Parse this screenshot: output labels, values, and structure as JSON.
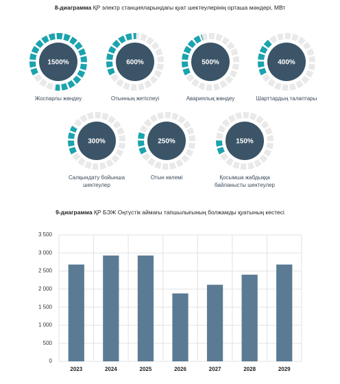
{
  "chart_data": [
    {
      "type": "gauge",
      "figure_label": "8-диаграмма",
      "title": "ҚР электр станцияларындағы қуат шектеулерінің орташа мәндері, МВт",
      "categories": [
        "Жоспарлы жөндеу",
        "Отынның жетіспеуі",
        "Авариялық жөндеу",
        "Шарттардың талаптары",
        "Салқындату бойынша шектеулер",
        "Отын көлемі",
        "Қосымша жабдыққа байланысты шектеулер"
      ],
      "values": [
        1500,
        600,
        500,
        400,
        300,
        250,
        150
      ],
      "value_labels": [
        "1500%",
        "600%",
        "500%",
        "400%",
        "300%",
        "250%",
        "150%"
      ],
      "color": "#1ba3ae"
    },
    {
      "type": "bar",
      "figure_label": "9-диаграмма",
      "title": "ҚР БЭЖ Оңтүстік аймағы тапшылығының болжамды қуатының кестесі",
      "categories": [
        "2023",
        "2024",
        "2025",
        "2026",
        "2027",
        "2028",
        "2029"
      ],
      "values": [
        2680,
        2930,
        2930,
        1880,
        2120,
        2400,
        2680
      ],
      "color": "#5b7b94",
      "ylim": [
        0,
        3500
      ],
      "yticks": [
        0,
        500,
        {
          "value": 1000,
          "label": "1 000"
        },
        {
          "value": 1500,
          "label": "1 500"
        },
        {
          "value": 2000,
          "label": "2 000"
        },
        {
          "value": 2500,
          "label": "2 500"
        },
        {
          "value": 3000,
          "label": "3 000"
        },
        {
          "value": 3500,
          "label": "3 500"
        }
      ],
      "grid": true
    }
  ]
}
